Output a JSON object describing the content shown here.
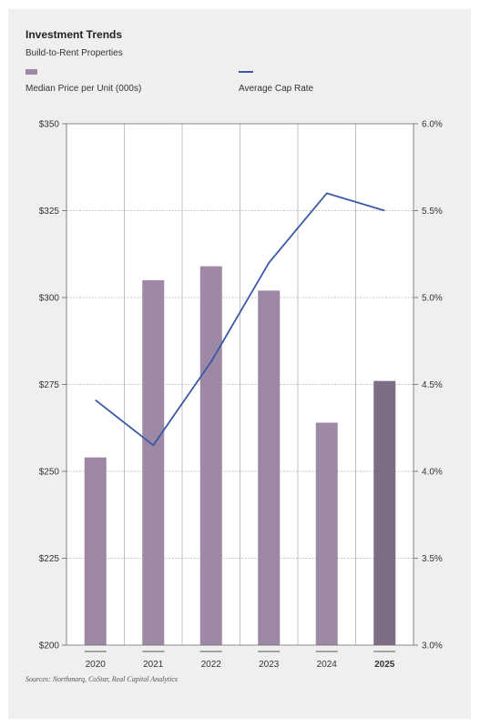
{
  "chart_data": {
    "type": "bar",
    "title": "Investment Trends",
    "subtitle": "Build-to-Rent Properties",
    "categories": [
      "2020",
      "2021",
      "2022",
      "2023",
      "2024",
      "2025"
    ],
    "highlighted_category": "2025",
    "series": [
      {
        "name": "Median Price per Unit (000s)",
        "type": "bar",
        "axis": "left",
        "values": [
          254,
          305,
          309,
          302,
          264,
          276
        ],
        "color": "#9d89a5",
        "highlight_color": "#7d6e86"
      },
      {
        "name": "Average Cap Rate",
        "type": "line",
        "axis": "right",
        "values": [
          4.41,
          4.15,
          4.63,
          5.2,
          5.6,
          5.5
        ],
        "color": "#3b57a6"
      }
    ],
    "y_left": {
      "ylim": [
        200,
        350
      ],
      "ticks": [
        200,
        225,
        250,
        275,
        300,
        325,
        350
      ],
      "tick_labels": [
        "$200",
        "$225",
        "$250",
        "$275",
        "$300",
        "$325",
        "$350"
      ]
    },
    "y_right": {
      "ylim": [
        3.0,
        6.0
      ],
      "ticks": [
        3.0,
        3.5,
        4.0,
        4.5,
        5.0,
        5.5,
        6.0
      ],
      "tick_labels": [
        "3.0%",
        "3.5%",
        "4.0%",
        "4.5%",
        "5.0%",
        "5.5%",
        "6.0%"
      ]
    },
    "grid": true,
    "legend_position": "top-left",
    "source": "Sources: Northmarq, CoStar, Real Capital Analytics"
  }
}
